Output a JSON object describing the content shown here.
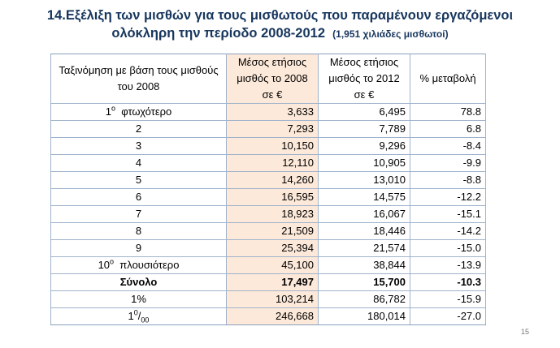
{
  "title": {
    "line1": "14.Εξέλιξη των μισθών για τους μισθωτούς που παραμένουν εργαζόμενοι",
    "line2": "ολόκληρη την περίοδο 2008-2012",
    "note": "(1,951 χιλιάδες μισθωτοί)"
  },
  "table": {
    "headers": {
      "col1": "Ταξινόμηση με βάση τους μισθούς του 2008",
      "col2": "Μέσος ετήσιος μισθός το 2008 σε €",
      "col3": "Μέσος ετήσιος μισθός το 2012 σε €",
      "col4": "% μεταβολή"
    },
    "rows": [
      {
        "label_num": "1",
        "label_sup": "ο",
        "label_text": "φτωχότερο",
        "v2008": "3,633",
        "v2012": "6,495",
        "change": "78.8"
      },
      {
        "label": "2",
        "v2008": "7,293",
        "v2012": "7,789",
        "change": "6.8"
      },
      {
        "label": "3",
        "v2008": "10,150",
        "v2012": "9,296",
        "change": "-8.4"
      },
      {
        "label": "4",
        "v2008": "12,110",
        "v2012": "10,905",
        "change": "-9.9"
      },
      {
        "label": "5",
        "v2008": "14,260",
        "v2012": "13,010",
        "change": "-8.8"
      },
      {
        "label": "6",
        "v2008": "16,595",
        "v2012": "14,575",
        "change": "-12.2"
      },
      {
        "label": "7",
        "v2008": "18,923",
        "v2012": "16,067",
        "change": "-15.1"
      },
      {
        "label": "8",
        "v2008": "21,509",
        "v2012": "18,446",
        "change": "-14.2"
      },
      {
        "label": "9",
        "v2008": "25,394",
        "v2012": "21,574",
        "change": "-15.0"
      },
      {
        "label_num": "10",
        "label_sup": "ο",
        "label_text": "πλουσιότερο",
        "v2008": "45,100",
        "v2012": "38,844",
        "change": "-13.9"
      }
    ],
    "total": {
      "label": "Σύνολο",
      "v2008": "17,497",
      "v2012": "15,700",
      "change": "-10.3"
    },
    "top1": {
      "label": "1%",
      "v2008": "103,214",
      "v2012": "86,782",
      "change": "-15.9"
    },
    "top01": {
      "label_num": "1",
      "label_sup": "0",
      "label_sub": "00",
      "v2008": "246,668",
      "v2012": "180,014",
      "change": "-27.0"
    }
  },
  "page_number": "15"
}
